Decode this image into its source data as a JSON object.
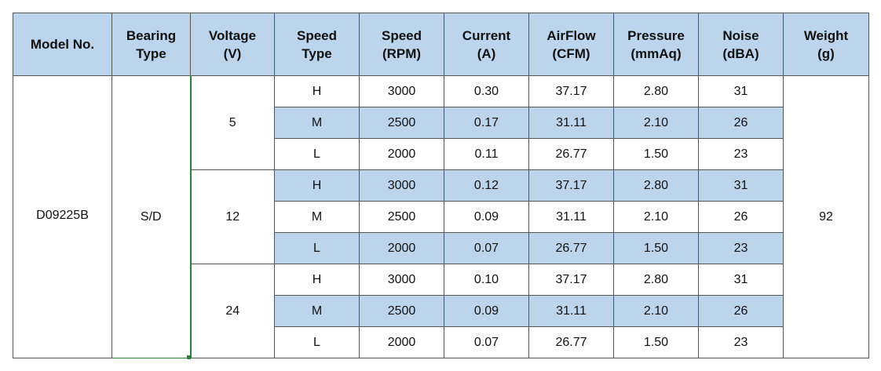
{
  "headers": [
    {
      "line1": "Model No.",
      "line2": ""
    },
    {
      "line1": "Bearing",
      "line2": "Type"
    },
    {
      "line1": "Voltage",
      "line2": "(V)"
    },
    {
      "line1": "Speed",
      "line2": "Type"
    },
    {
      "line1": "Speed",
      "line2": "(RPM)"
    },
    {
      "line1": "Current",
      "line2": "(A)"
    },
    {
      "line1": "AirFlow",
      "line2": "(CFM)"
    },
    {
      "line1": "Pressure",
      "line2": "(mmAq)"
    },
    {
      "line1": "Noise",
      "line2": "(dBA)"
    },
    {
      "line1": "Weight",
      "line2": "(g)"
    }
  ],
  "model": "D09225B",
  "bearing": "S/D",
  "weight": "92",
  "voltages": [
    "5",
    "12",
    "24"
  ],
  "rows": [
    {
      "speed_type": "H",
      "rpm": "3000",
      "current": "0.30",
      "airflow": "37.17",
      "pressure": "2.80",
      "noise": "31"
    },
    {
      "speed_type": "M",
      "rpm": "2500",
      "current": "0.17",
      "airflow": "31.11",
      "pressure": "2.10",
      "noise": "26"
    },
    {
      "speed_type": "L",
      "rpm": "2000",
      "current": "0.11",
      "airflow": "26.77",
      "pressure": "1.50",
      "noise": "23"
    },
    {
      "speed_type": "H",
      "rpm": "3000",
      "current": "0.12",
      "airflow": "37.17",
      "pressure": "2.80",
      "noise": "31"
    },
    {
      "speed_type": "M",
      "rpm": "2500",
      "current": "0.09",
      "airflow": "31.11",
      "pressure": "2.10",
      "noise": "26"
    },
    {
      "speed_type": "L",
      "rpm": "2000",
      "current": "0.07",
      "airflow": "26.77",
      "pressure": "1.50",
      "noise": "23"
    },
    {
      "speed_type": "H",
      "rpm": "3000",
      "current": "0.10",
      "airflow": "37.17",
      "pressure": "2.80",
      "noise": "31"
    },
    {
      "speed_type": "M",
      "rpm": "2500",
      "current": "0.09",
      "airflow": "31.11",
      "pressure": "2.10",
      "noise": "26"
    },
    {
      "speed_type": "L",
      "rpm": "2000",
      "current": "0.07",
      "airflow": "26.77",
      "pressure": "1.50",
      "noise": "23"
    }
  ],
  "colors": {
    "header_fill": "#bcd5ec",
    "selection_border": "#2f7d3a",
    "grid": "#555555"
  }
}
